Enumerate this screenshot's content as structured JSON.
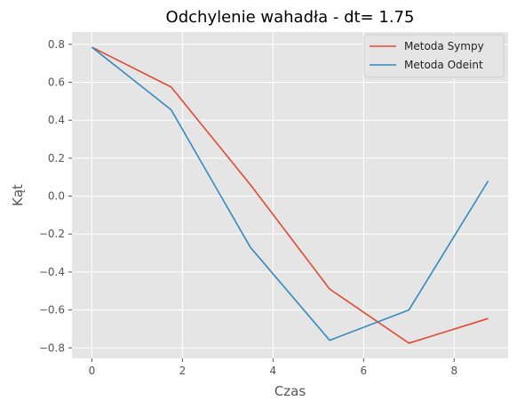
{
  "chart_data": {
    "type": "line",
    "title": "Odchylenie wahadła - dt= 1.75",
    "xlabel": "Czas",
    "ylabel": "Kąt",
    "xlim": [
      -0.44,
      9.19
    ],
    "ylim": [
      -0.855,
      0.865
    ],
    "xticks": [
      0,
      2,
      4,
      6,
      8
    ],
    "yticks": [
      -0.8,
      -0.6,
      -0.4,
      -0.2,
      0.0,
      0.2,
      0.4,
      0.6,
      0.8
    ],
    "ytick_labels": [
      "−0.8",
      "−0.6",
      "−0.4",
      "−0.2",
      "0.0",
      "0.2",
      "0.4",
      "0.6",
      "0.8"
    ],
    "grid": true,
    "legend_position": "top-right",
    "x": [
      0,
      1.75,
      3.5,
      5.25,
      7.0,
      8.75
    ],
    "series": [
      {
        "name": "Metoda Sympy",
        "color": "#E24A33",
        "values": [
          0.785,
          0.575,
          0.06,
          -0.49,
          -0.775,
          -0.645
        ]
      },
      {
        "name": "Metoda Odeint",
        "color": "#348ABD",
        "values": [
          0.785,
          0.455,
          -0.27,
          -0.76,
          -0.6,
          0.08
        ]
      }
    ]
  },
  "colors": {
    "plot_background": "#E5E5E5",
    "grid": "#FFFFFF"
  }
}
